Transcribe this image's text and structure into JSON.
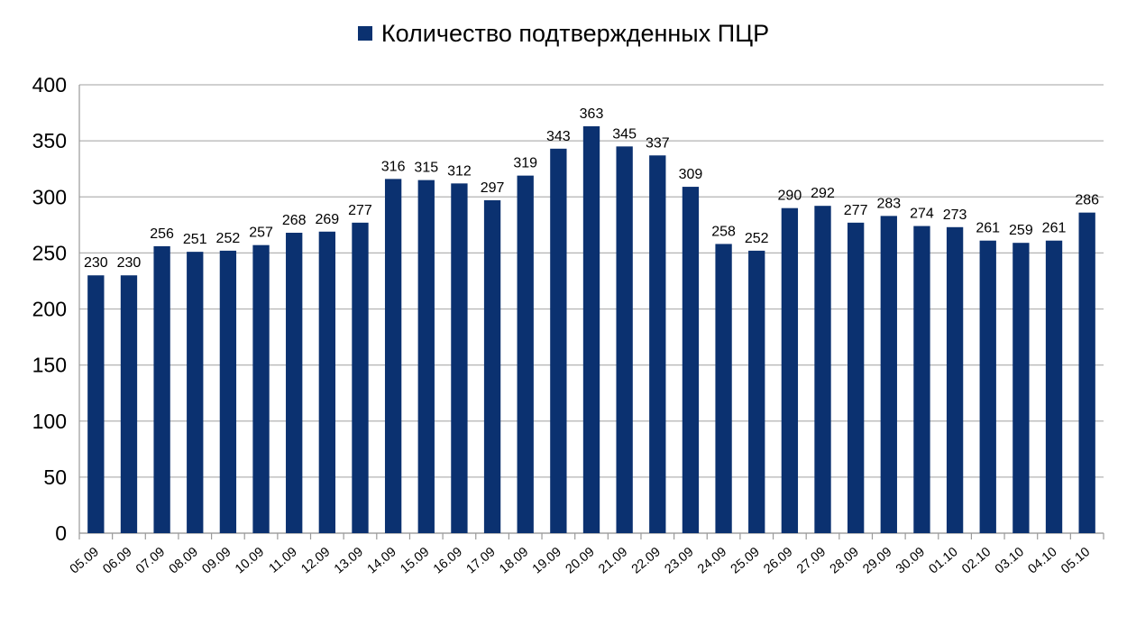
{
  "chart_data": {
    "type": "bar",
    "title": "",
    "xlabel": "",
    "ylabel": "",
    "ylim": [
      0,
      400
    ],
    "yticks": [
      0,
      50,
      100,
      150,
      200,
      250,
      300,
      350,
      400
    ],
    "grid": true,
    "legend_placement": "top-center",
    "categories": [
      "05.09",
      "06.09",
      "07.09",
      "08.09",
      "09.09",
      "10.09",
      "11.09",
      "12.09",
      "13.09",
      "14.09",
      "15.09",
      "16.09",
      "17.09",
      "18.09",
      "19.09",
      "20.09",
      "21.09",
      "22.09",
      "23.09",
      "24.09",
      "25.09",
      "26.09",
      "27.09",
      "28.09",
      "29.09",
      "30.09",
      "01.10",
      "02.10",
      "03.10",
      "04.10",
      "05.10"
    ],
    "series": [
      {
        "name": "Количество подтвержденных ПЦР",
        "color": "#0b3170",
        "values": [
          230,
          230,
          256,
          251,
          252,
          257,
          268,
          269,
          277,
          316,
          315,
          312,
          297,
          319,
          343,
          363,
          345,
          337,
          309,
          258,
          252,
          290,
          292,
          277,
          283,
          274,
          273,
          261,
          259,
          261,
          286
        ]
      }
    ],
    "colors": {
      "grid": "#b3b3b3",
      "axis": "#9a9a9a"
    }
  }
}
